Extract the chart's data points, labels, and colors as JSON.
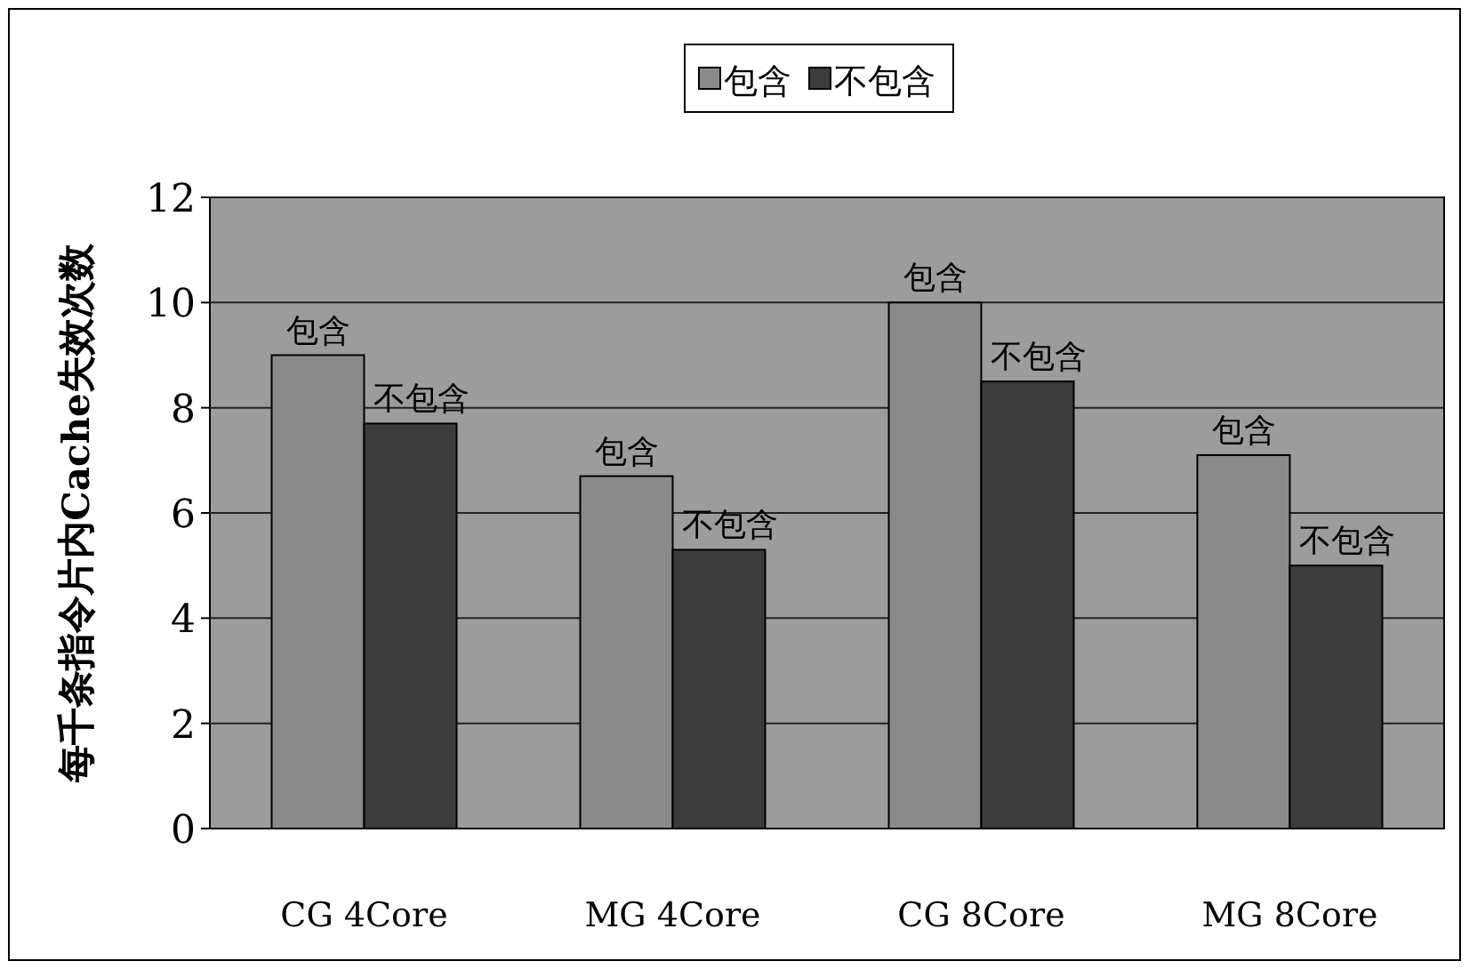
{
  "chart_data": {
    "type": "bar",
    "ylabel": "每千条指令片内Cache失效次数",
    "categories": [
      "CG 4Core",
      "MG 4Core",
      "CG 8Core",
      "MG 8Core"
    ],
    "series": [
      {
        "name": "包含",
        "color": "#8a8a8a",
        "values": [
          9.0,
          6.7,
          10.0,
          7.1
        ],
        "value_labels": [
          "包含",
          "包含",
          "包含",
          "包含"
        ]
      },
      {
        "name": "不包含",
        "color": "#3c3c3c",
        "values": [
          7.7,
          5.3,
          8.5,
          5.0
        ],
        "value_labels": [
          "不包含",
          "不包含",
          "不包含",
          "不包含"
        ]
      }
    ],
    "ylim": [
      0,
      12
    ],
    "yticks": [
      0,
      2,
      4,
      6,
      8,
      10,
      12
    ],
    "grid": "y",
    "legend": "top"
  }
}
